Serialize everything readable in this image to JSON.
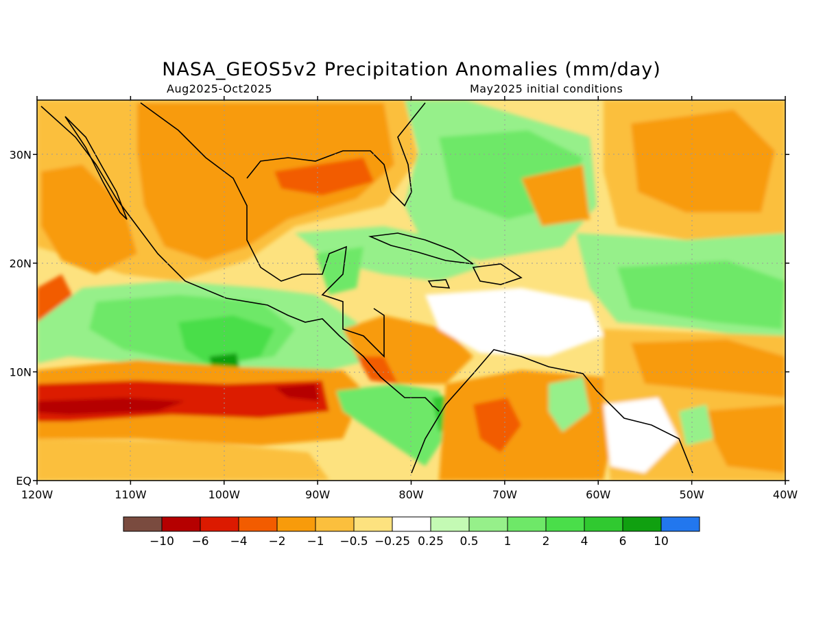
{
  "header": {
    "title": "NASA_GEOS5v2 Precipitation Anomalies (mm/day)",
    "period": "Aug2025-Oct2025",
    "init": "May2025 initial conditions"
  },
  "map": {
    "lon_range": [
      -120,
      -40
    ],
    "lat_range": [
      0,
      35
    ],
    "x_ticks": [
      {
        "lon": -120,
        "label": "120W"
      },
      {
        "lon": -110,
        "label": "110W"
      },
      {
        "lon": -100,
        "label": "100W"
      },
      {
        "lon": -90,
        "label": "90W"
      },
      {
        "lon": -80,
        "label": "80W"
      },
      {
        "lon": -70,
        "label": "70W"
      },
      {
        "lon": -60,
        "label": "60W"
      },
      {
        "lon": -50,
        "label": "50W"
      },
      {
        "lon": -40,
        "label": "40W"
      }
    ],
    "y_ticks": [
      {
        "lat": 0,
        "label": "EQ"
      },
      {
        "lat": 10,
        "label": "10N"
      },
      {
        "lat": 20,
        "label": "20N"
      },
      {
        "lat": 30,
        "label": "30N"
      }
    ],
    "grid": "dotted"
  },
  "colorbar": {
    "colors": [
      "#7a4b3f",
      "#b50000",
      "#dc1a00",
      "#f25c00",
      "#f89b0b",
      "#fbbf3d",
      "#fde27f",
      "#ffffff",
      "#c4fab4",
      "#96f08a",
      "#6ee868",
      "#4ade4a",
      "#30c930",
      "#10a010",
      "#2277ee"
    ],
    "labels": [
      "-10",
      "-6",
      "-4",
      "-2",
      "-1",
      "-0.5",
      "-0.25",
      "0.25",
      "0.5",
      "1",
      "2",
      "4",
      "6",
      "10"
    ]
  },
  "anomaly_regions": [
    {
      "label": "Gulf of Mexico / southern US",
      "level": -1
    },
    {
      "label": "Eastern Pacific ITCZ 5N-10N",
      "level": -4
    },
    {
      "label": "Eastern Pacific 10N-17N",
      "level": 1
    },
    {
      "label": "Caribbean central",
      "level": 0
    },
    {
      "label": "Northern South America",
      "level": -1
    },
    {
      "label": "Central Atlantic 15N-25N",
      "level": 1
    },
    {
      "label": "Subtropical Atlantic 25N-35N",
      "level": -1
    },
    {
      "label": "Florida / Bahamas / western Atlantic",
      "level": 1
    }
  ]
}
